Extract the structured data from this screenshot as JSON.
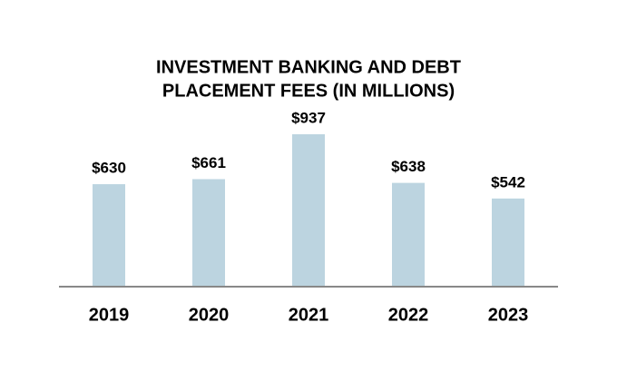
{
  "chart_data": {
    "type": "bar",
    "title": [
      "INVESTMENT BANKING AND DEBT",
      "PLACEMENT FEES (IN MILLIONS)"
    ],
    "categories": [
      "2019",
      "2020",
      "2021",
      "2022",
      "2023"
    ],
    "values": [
      630,
      661,
      937,
      638,
      542
    ],
    "value_labels": [
      "$630",
      "$661",
      "$937",
      "$638",
      "$542"
    ],
    "color": "#bcd4e0"
  }
}
